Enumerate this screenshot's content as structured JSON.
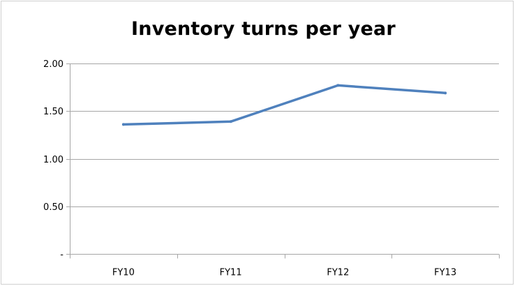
{
  "chart_data": {
    "type": "line",
    "title": "Inventory turns per year",
    "xlabel": "",
    "ylabel": "",
    "categories": [
      "FY10",
      "FY11",
      "FY12",
      "FY13"
    ],
    "series": [
      {
        "values": [
          1.36,
          1.39,
          1.77,
          1.69
        ],
        "color": "#4F81BD"
      }
    ],
    "ylim": [
      0,
      2
    ],
    "y_ticks": [
      0,
      0.5,
      1.0,
      1.5,
      2.0
    ],
    "y_tick_labels": [
      "-",
      "0.50",
      "1.00",
      "1.50",
      "2.00"
    ],
    "grid": true,
    "grid_color": "#a6a6a6",
    "legend": "none"
  }
}
